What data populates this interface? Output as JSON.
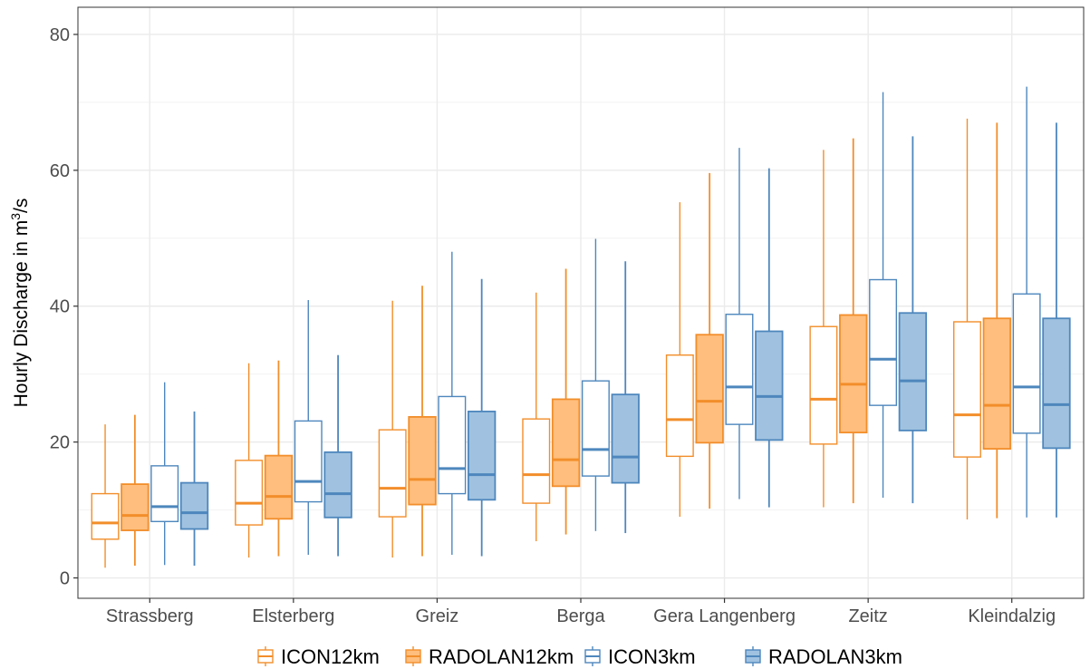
{
  "chart_data": {
    "type": "boxplot",
    "ylabel_prefix": "Hourly Discharge in ",
    "ylabel_unit": "m",
    "ylabel_sup": "3",
    "ylabel_suffix": "/s",
    "xlabel": "",
    "ylim": [
      -3,
      84
    ],
    "yticks": [
      0,
      20,
      40,
      60,
      80
    ],
    "grid": true,
    "legend_position": "bottom",
    "categories": [
      "Strassberg",
      "Elsterberg",
      "Greiz",
      "Berga",
      "Gera Langenberg",
      "Zeitz",
      "Kleindalzig"
    ],
    "series": [
      {
        "name": "ICON12km",
        "color": "#F28E2B",
        "fill": "#FFFFFF",
        "boxes": [
          {
            "min": 1.5,
            "q1": 5.7,
            "median": 8.1,
            "q3": 12.4,
            "max": 22.6
          },
          {
            "min": 3.0,
            "q1": 7.8,
            "median": 11.0,
            "q3": 17.3,
            "max": 31.6
          },
          {
            "min": 3.0,
            "q1": 9.0,
            "median": 13.2,
            "q3": 21.8,
            "max": 40.8
          },
          {
            "min": 5.4,
            "q1": 11.0,
            "median": 15.2,
            "q3": 23.4,
            "max": 42.0
          },
          {
            "min": 9.0,
            "q1": 17.9,
            "median": 23.3,
            "q3": 32.8,
            "max": 55.3
          },
          {
            "min": 10.4,
            "q1": 19.7,
            "median": 26.3,
            "q3": 37.0,
            "max": 63.0
          },
          {
            "min": 8.6,
            "q1": 17.8,
            "median": 24.0,
            "q3": 37.7,
            "max": 67.6
          }
        ]
      },
      {
        "name": "RADOLAN12km",
        "color": "#F28E2B",
        "fill": "#FFBE7D",
        "boxes": [
          {
            "min": 1.8,
            "q1": 7.0,
            "median": 9.2,
            "q3": 13.8,
            "max": 24.0
          },
          {
            "min": 3.2,
            "q1": 8.7,
            "median": 12.0,
            "q3": 18.0,
            "max": 32.0
          },
          {
            "min": 3.2,
            "q1": 10.8,
            "median": 14.5,
            "q3": 23.7,
            "max": 43.0
          },
          {
            "min": 6.4,
            "q1": 13.5,
            "median": 17.4,
            "q3": 26.3,
            "max": 45.5
          },
          {
            "min": 10.2,
            "q1": 19.9,
            "median": 26.0,
            "q3": 35.8,
            "max": 59.6
          },
          {
            "min": 11.0,
            "q1": 21.4,
            "median": 28.5,
            "q3": 38.7,
            "max": 64.7
          },
          {
            "min": 8.8,
            "q1": 19.0,
            "median": 25.4,
            "q3": 38.2,
            "max": 67.0
          }
        ]
      },
      {
        "name": "ICON3km",
        "color": "#4E87BD",
        "fill": "#FFFFFF",
        "boxes": [
          {
            "min": 1.9,
            "q1": 8.3,
            "median": 10.5,
            "q3": 16.5,
            "max": 28.8
          },
          {
            "min": 3.4,
            "q1": 11.2,
            "median": 14.2,
            "q3": 23.1,
            "max": 40.9
          },
          {
            "min": 3.4,
            "q1": 12.4,
            "median": 16.1,
            "q3": 26.7,
            "max": 48.0
          },
          {
            "min": 6.9,
            "q1": 15.0,
            "median": 18.9,
            "q3": 29.0,
            "max": 49.9
          },
          {
            "min": 11.6,
            "q1": 22.6,
            "median": 28.1,
            "q3": 38.8,
            "max": 63.3
          },
          {
            "min": 11.8,
            "q1": 25.4,
            "median": 32.2,
            "q3": 43.9,
            "max": 71.5
          },
          {
            "min": 8.9,
            "q1": 21.3,
            "median": 28.1,
            "q3": 41.8,
            "max": 72.3
          }
        ]
      },
      {
        "name": "RADOLAN3km",
        "color": "#4E87BD",
        "fill": "#A0C2E0",
        "boxes": [
          {
            "min": 1.8,
            "q1": 7.2,
            "median": 9.6,
            "q3": 14.0,
            "max": 24.5
          },
          {
            "min": 3.2,
            "q1": 8.9,
            "median": 12.4,
            "q3": 18.5,
            "max": 32.8
          },
          {
            "min": 3.2,
            "q1": 11.5,
            "median": 15.2,
            "q3": 24.5,
            "max": 44.0
          },
          {
            "min": 6.6,
            "q1": 14.0,
            "median": 17.8,
            "q3": 27.0,
            "max": 46.6
          },
          {
            "min": 10.4,
            "q1": 20.3,
            "median": 26.7,
            "q3": 36.3,
            "max": 60.3
          },
          {
            "min": 11.0,
            "q1": 21.7,
            "median": 29.0,
            "q3": 39.0,
            "max": 65.0
          },
          {
            "min": 8.9,
            "q1": 19.1,
            "median": 25.5,
            "q3": 38.2,
            "max": 67.0
          }
        ]
      }
    ]
  }
}
